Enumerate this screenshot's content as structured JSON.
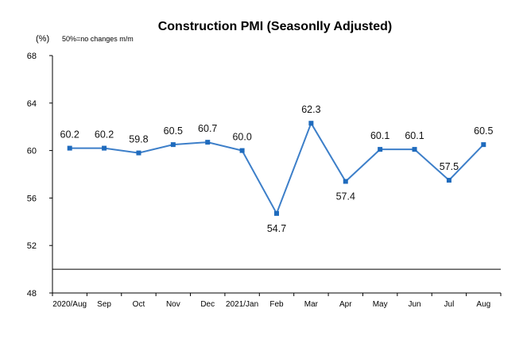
{
  "chart_data": {
    "type": "line",
    "title": "Construction PMI (Seasonlly Adjusted)",
    "unit_label": "(%)",
    "note": "50%=no changes  m/m",
    "xlabel": "",
    "ylabel": "",
    "ylim": [
      48,
      68
    ],
    "yticks": [
      "48",
      "52",
      "56",
      "60",
      "64",
      "68"
    ],
    "categories": [
      "2020/Aug",
      "Sep",
      "Oct",
      "Nov",
      "Dec",
      "2021/Jan",
      "Feb",
      "Mar",
      "Apr",
      "May",
      "Jun",
      "Jul",
      "Aug"
    ],
    "values": [
      60.2,
      60.2,
      59.8,
      60.5,
      60.7,
      60.0,
      54.7,
      62.3,
      57.4,
      60.1,
      60.1,
      57.5,
      60.5
    ],
    "value_labels": [
      "60.2",
      "60.2",
      "59.8",
      "60.5",
      "60.7",
      "60.0",
      "54.7",
      "62.3",
      "57.4",
      "60.1",
      "60.1",
      "57.5",
      "60.5"
    ],
    "label_positions": [
      "above",
      "above",
      "above",
      "above",
      "above",
      "above",
      "below",
      "above",
      "below",
      "above",
      "above",
      "above",
      "above"
    ],
    "reference_line": 50,
    "grid": false,
    "line_color": "#3d7fc9",
    "marker_color": "#1f6bbd"
  }
}
